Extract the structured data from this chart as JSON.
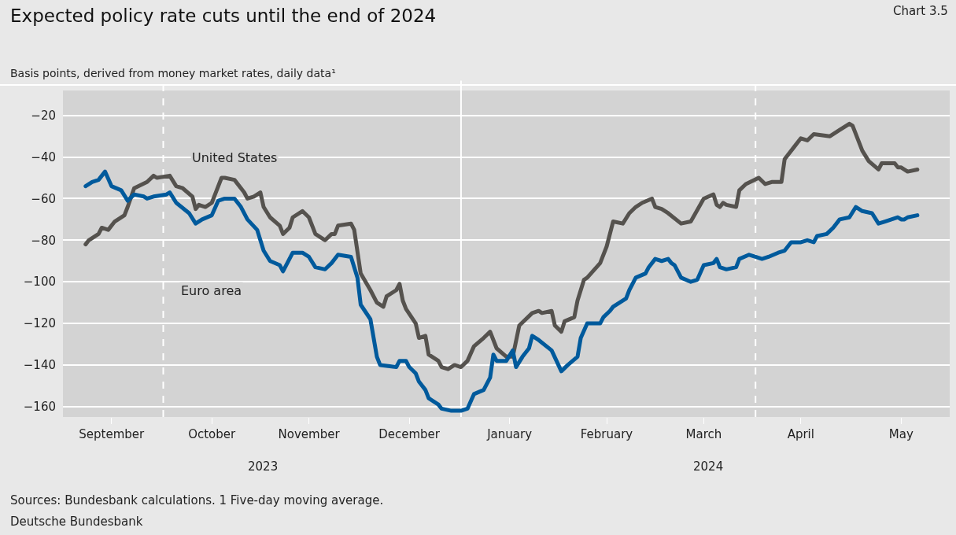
{
  "chart_data": {
    "type": "line",
    "title": "Expected policy rate cuts until the end of 2024",
    "subtitle": "Basis points, derived from money market rates, daily data¹",
    "annotations": [
      "Chart 3.5",
      "Sources: Bundesbank calculations. 1 Five-day moving average.",
      "Deutsche Bundesbank",
      "2023",
      "2024"
    ],
    "xlim": [
      "2023-08-31",
      "2024-05-31"
    ],
    "xticks": [
      {
        "value": "2023-09-15",
        "label": "September"
      },
      {
        "value": "2023-10-16",
        "label": "October"
      },
      {
        "value": "2023-11-15",
        "label": "November"
      },
      {
        "value": "2023-12-16",
        "label": "December"
      },
      {
        "value": "2024-01-16",
        "label": "January"
      },
      {
        "value": "2024-02-15",
        "label": "February"
      },
      {
        "value": "2024-03-16",
        "label": "March"
      },
      {
        "value": "2024-04-15",
        "label": "April"
      },
      {
        "value": "2024-05-16",
        "label": "May"
      }
    ],
    "ylim": [
      -165,
      -8
    ],
    "yticks": [
      -20,
      -40,
      -60,
      -80,
      -100,
      -120,
      -140,
      -160
    ],
    "grid": "y",
    "legend": false,
    "line_style": "solid",
    "marker": "none",
    "ref_lines": [
      {
        "axis": "x",
        "value": "2023-10-01",
        "color": "#ffffff",
        "line_style": "dashed"
      },
      {
        "axis": "x",
        "value": "2024-01-01",
        "color": "#ffffff",
        "line_style": "solid"
      },
      {
        "axis": "x",
        "value": "2024-04-01",
        "color": "#ffffff",
        "line_style": "dashed"
      }
    ],
    "series": [
      {
        "name": "United States",
        "color": "#55524e",
        "x": [
          "2023-09-07",
          "2023-09-08",
          "2023-09-11",
          "2023-09-12",
          "2023-09-14",
          "2023-09-16",
          "2023-09-19",
          "2023-09-20",
          "2023-09-22",
          "2023-09-26",
          "2023-09-28",
          "2023-09-29",
          "2023-10-03",
          "2023-10-05",
          "2023-10-07",
          "2023-10-10",
          "2023-10-11",
          "2023-10-12",
          "2023-10-14",
          "2023-10-16",
          "2023-10-17",
          "2023-10-19",
          "2023-10-20",
          "2023-10-23",
          "2023-10-26",
          "2023-10-27",
          "2023-10-29",
          "2023-10-31",
          "2023-11-01",
          "2023-11-03",
          "2023-11-06",
          "2023-11-07",
          "2023-11-09",
          "2023-11-10",
          "2023-11-13",
          "2023-11-15",
          "2023-11-17",
          "2023-11-20",
          "2023-11-22",
          "2023-11-23",
          "2023-11-24",
          "2023-11-28",
          "2023-11-29",
          "2023-12-01",
          "2023-12-04",
          "2023-12-06",
          "2023-12-08",
          "2023-12-09",
          "2023-12-12",
          "2023-12-13",
          "2023-12-14",
          "2023-12-15",
          "2023-12-18",
          "2023-12-19",
          "2023-12-21",
          "2023-12-22",
          "2023-12-25",
          "2023-12-26",
          "2023-12-28",
          "2023-12-30",
          "2024-01-01",
          "2024-01-03",
          "2024-01-05",
          "2024-01-08",
          "2024-01-10",
          "2024-01-12",
          "2024-01-15",
          "2024-01-17",
          "2024-01-19",
          "2024-01-23",
          "2024-01-25",
          "2024-01-26",
          "2024-01-29",
          "2024-01-30",
          "2024-02-01",
          "2024-02-02",
          "2024-02-05",
          "2024-02-06",
          "2024-02-08",
          "2024-02-09",
          "2024-02-13",
          "2024-02-15",
          "2024-02-17",
          "2024-02-20",
          "2024-02-22",
          "2024-02-24",
          "2024-02-26",
          "2024-02-29",
          "2024-03-01",
          "2024-03-03",
          "2024-03-05",
          "2024-03-09",
          "2024-03-12",
          "2024-03-16",
          "2024-03-19",
          "2024-03-20",
          "2024-03-21",
          "2024-03-22",
          "2024-03-23",
          "2024-03-26",
          "2024-03-27",
          "2024-03-29",
          "2024-04-02",
          "2024-04-04",
          "2024-04-06",
          "2024-04-09",
          "2024-04-10",
          "2024-04-13",
          "2024-04-15",
          "2024-04-17",
          "2024-04-19",
          "2024-04-24",
          "2024-04-27",
          "2024-04-30",
          "2024-05-01",
          "2024-05-04",
          "2024-05-06",
          "2024-05-09",
          "2024-05-10",
          "2024-05-14",
          "2024-05-15",
          "2024-05-16",
          "2024-05-18",
          "2024-05-21"
        ],
        "values": [
          -82,
          -80,
          -77,
          -74,
          -75,
          -71,
          -68,
          -64,
          -55,
          -52,
          -49,
          -50,
          -49,
          -54,
          -55,
          -59,
          -65,
          -63,
          -64,
          -62,
          -58,
          -50,
          -50,
          -51,
          -57,
          -60,
          -59,
          -57,
          -64,
          -69,
          -73,
          -77,
          -74,
          -69,
          -66,
          -69,
          -77,
          -80,
          -77,
          -77,
          -73,
          -72,
          -75,
          -96,
          -104,
          -110,
          -112,
          -107,
          -104,
          -101,
          -109,
          -113,
          -120,
          -127,
          -126,
          -135,
          -138,
          -141,
          -142,
          -140,
          -141,
          -138,
          -131,
          -127,
          -124,
          -132,
          -136,
          -136,
          -121,
          -115,
          -114,
          -115,
          -114,
          -121,
          -124,
          -119,
          -117,
          -109,
          -99,
          -98,
          -91,
          -83,
          -71,
          -72,
          -67,
          -64,
          -62,
          -60,
          -64,
          -65,
          -67,
          -72,
          -71,
          -60,
          -58,
          -63,
          -64,
          -62,
          -63,
          -64,
          -56,
          -53,
          -50,
          -53,
          -52,
          -52,
          -41,
          -35,
          -31,
          -32,
          -29,
          -30,
          -27,
          -24,
          -25,
          -37,
          -42,
          -46,
          -43,
          -43,
          -45,
          -45,
          -47,
          -46
        ]
      },
      {
        "name": "Euro area",
        "color": "#005a9c",
        "x": [
          "2023-09-07",
          "2023-09-09",
          "2023-09-11",
          "2023-09-13",
          "2023-09-15",
          "2023-09-18",
          "2023-09-20",
          "2023-09-22",
          "2023-09-25",
          "2023-09-26",
          "2023-09-28",
          "2023-10-02",
          "2023-10-03",
          "2023-10-05",
          "2023-10-09",
          "2023-10-11",
          "2023-10-13",
          "2023-10-16",
          "2023-10-18",
          "2023-10-20",
          "2023-10-23",
          "2023-10-25",
          "2023-10-27",
          "2023-10-30",
          "2023-11-01",
          "2023-11-03",
          "2023-11-06",
          "2023-11-07",
          "2023-11-10",
          "2023-11-13",
          "2023-11-15",
          "2023-11-17",
          "2023-11-20",
          "2023-11-22",
          "2023-11-24",
          "2023-11-28",
          "2023-11-30",
          "2023-12-01",
          "2023-12-04",
          "2023-12-06",
          "2023-12-07",
          "2023-12-12",
          "2023-12-13",
          "2023-12-15",
          "2023-12-16",
          "2023-12-18",
          "2023-12-19",
          "2023-12-21",
          "2023-12-22",
          "2023-12-25",
          "2023-12-26",
          "2023-12-29",
          "2024-01-01",
          "2024-01-03",
          "2024-01-05",
          "2024-01-08",
          "2024-01-10",
          "2024-01-11",
          "2024-01-12",
          "2024-01-15",
          "2024-01-17",
          "2024-01-18",
          "2024-01-20",
          "2024-01-22",
          "2024-01-23",
          "2024-01-25",
          "2024-01-29",
          "2024-02-01",
          "2024-02-03",
          "2024-02-06",
          "2024-02-07",
          "2024-02-09",
          "2024-02-13",
          "2024-02-14",
          "2024-02-16",
          "2024-02-17",
          "2024-02-21",
          "2024-02-22",
          "2024-02-24",
          "2024-02-27",
          "2024-02-28",
          "2024-03-01",
          "2024-03-03",
          "2024-03-05",
          "2024-03-06",
          "2024-03-07",
          "2024-03-09",
          "2024-03-12",
          "2024-03-14",
          "2024-03-16",
          "2024-03-19",
          "2024-03-20",
          "2024-03-21",
          "2024-03-23",
          "2024-03-26",
          "2024-03-27",
          "2024-03-30",
          "2024-04-01",
          "2024-04-03",
          "2024-04-05",
          "2024-04-08",
          "2024-04-10",
          "2024-04-12",
          "2024-04-15",
          "2024-04-17",
          "2024-04-19",
          "2024-04-20",
          "2024-04-23",
          "2024-04-25",
          "2024-04-27",
          "2024-04-30",
          "2024-05-02",
          "2024-05-04",
          "2024-05-07",
          "2024-05-09",
          "2024-05-11",
          "2024-05-13",
          "2024-05-15",
          "2024-05-16",
          "2024-05-17",
          "2024-05-18",
          "2024-05-21"
        ],
        "values": [
          -54,
          -52,
          -51,
          -47,
          -54,
          -56,
          -61,
          -58,
          -59,
          -60,
          -59,
          -58,
          -57,
          -62,
          -67,
          -72,
          -70,
          -68,
          -61,
          -60,
          -60,
          -64,
          -70,
          -75,
          -85,
          -90,
          -92,
          -95,
          -86,
          -86,
          -88,
          -93,
          -94,
          -91,
          -87,
          -88,
          -98,
          -111,
          -118,
          -136,
          -140,
          -141,
          -138,
          -138,
          -141,
          -144,
          -148,
          -152,
          -156,
          -159,
          -161,
          -162,
          -162,
          -161,
          -154,
          -152,
          -146,
          -135,
          -138,
          -138,
          -133,
          -141,
          -136,
          -132,
          -126,
          -128,
          -133,
          -143,
          -140,
          -136,
          -127,
          -120,
          -120,
          -117,
          -114,
          -112,
          -108,
          -104,
          -98,
          -96,
          -93,
          -89,
          -90,
          -89,
          -91,
          -92,
          -98,
          -100,
          -99,
          -92,
          -91,
          -89,
          -93,
          -94,
          -93,
          -89,
          -87,
          -88,
          -89,
          -88,
          -86,
          -85,
          -81,
          -81,
          -80,
          -81,
          -78,
          -77,
          -74,
          -70,
          -69,
          -64,
          -66,
          -67,
          -72,
          -71,
          -70,
          -69,
          -70,
          -70,
          -69,
          -68
        ]
      }
    ]
  }
}
